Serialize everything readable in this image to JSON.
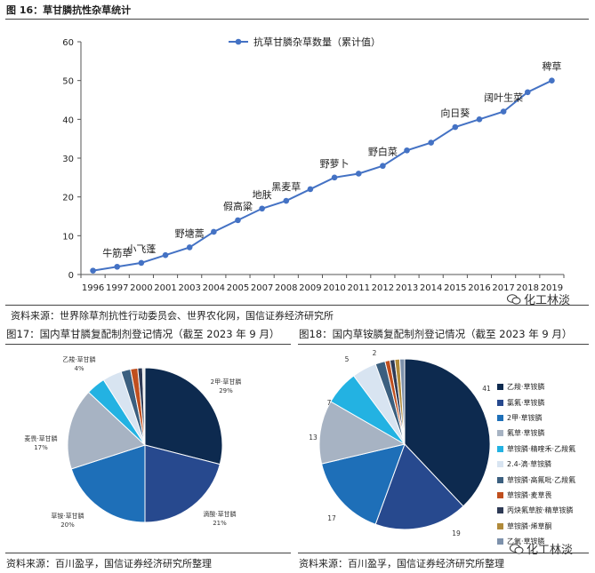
{
  "figure16": {
    "title": "图 16：草甘膦抗性杂草统计",
    "source": "资料来源：世界除草剂抗性行动委员会、世界农化网，国信证券经济研究所",
    "watermark": "化工林淡"
  },
  "figure17": {
    "title": "图17：国内草甘膦复配制剂登记情况（截至 2023 年 9 月）",
    "source": "资料来源：百川盈孚，国信证券经济研究所整理",
    "watermark": "化工林淡"
  },
  "figure18": {
    "title": "图18：国内草铵膦复配制剂登记情况（截至 2023 年 9 月）",
    "source": "资料来源：百川盈孚，国信证券经济研究所整理",
    "watermark": "化工林淡"
  },
  "chart_data": [
    {
      "type": "line",
      "x": [
        "1996",
        "1997",
        "2000",
        "2001",
        "2003",
        "2004",
        "2005",
        "2007",
        "2008",
        "2009",
        "2010",
        "2011",
        "2012",
        "2013",
        "2014",
        "2015",
        "2016",
        "2017",
        "2018",
        "2019"
      ],
      "series": [
        {
          "name": "抗草甘膦杂草数量（累计值）",
          "values": [
            1,
            2,
            3,
            5,
            7,
            11,
            14,
            17,
            19,
            22,
            25,
            26,
            28,
            32,
            34,
            38,
            40,
            42,
            47,
            50
          ],
          "color": "#4472c4"
        }
      ],
      "annotations": [
        {
          "x": "1997",
          "text": "牛筋草"
        },
        {
          "x": "2000",
          "text": "小飞蓬"
        },
        {
          "x": "2003",
          "text": "野塘蒿"
        },
        {
          "x": "2005",
          "text": "假高粱"
        },
        {
          "x": "2007",
          "text": "地肤"
        },
        {
          "x": "2008",
          "text": "黑麦草"
        },
        {
          "x": "2010",
          "text": "野萝卜"
        },
        {
          "x": "2012",
          "text": "野白菜"
        },
        {
          "x": "2015",
          "text": "向日葵"
        },
        {
          "x": "2017",
          "text": "阔叶生菜"
        },
        {
          "x": "2019",
          "text": "稗草"
        }
      ],
      "ylim": [
        0,
        60
      ],
      "yticks": [
        0,
        10,
        20,
        30,
        40,
        50,
        60
      ],
      "legend": "top",
      "grid": false
    },
    {
      "type": "pie",
      "labels": [
        "2甲·草甘膦",
        "滴酸·草甘膦",
        "草铵·草甘膦",
        "麦畏·草甘膦",
        "乙羧·草甘膦",
        "",
        "",
        "",
        "",
        ""
      ],
      "values": [
        29,
        21,
        20,
        17,
        4,
        4,
        2,
        1.5,
        1,
        0.5
      ],
      "percent_labels": [
        "29%",
        "21%",
        "20%",
        "17%",
        "4%",
        "",
        "",
        "",
        "",
        ""
      ],
      "colors": [
        "#0d2a4f",
        "#27498e",
        "#1e6fb8",
        "#a7b3c3",
        "#23b2e2",
        "#d8e4f1",
        "#3b5f7f",
        "#c04f1e",
        "#2e3a55",
        "#e6e6e6"
      ]
    },
    {
      "type": "pie",
      "labels": [
        "乙羧·草铵膦",
        "氯氟·草铵膦",
        "2甲·草铵膦",
        "氟草·草铵膦",
        "草铵膦·精喹禾·乙羧氟",
        "2.4-滴·草铵膦",
        "草铵膦·高氟吡·乙羧氟",
        "草铵膦·麦草畏",
        "丙炔氟草胺·精草铵膦",
        "草铵膦·烯草酮",
        "乙氧·草铵膦"
      ],
      "values": [
        41,
        19,
        17,
        13,
        7,
        5,
        2,
        1,
        1,
        1,
        1
      ],
      "value_labels": [
        "41",
        "19",
        "17",
        "13",
        "7",
        "5",
        "2",
        "",
        "",
        "",
        ""
      ],
      "colors": [
        "#0d2a4f",
        "#27498e",
        "#1e6fb8",
        "#a7b3c3",
        "#23b2e2",
        "#d8e4f1",
        "#3b5f7f",
        "#c04f1e",
        "#2e3a55",
        "#b08a3a",
        "#7d91ab"
      ],
      "legend": "right"
    }
  ]
}
